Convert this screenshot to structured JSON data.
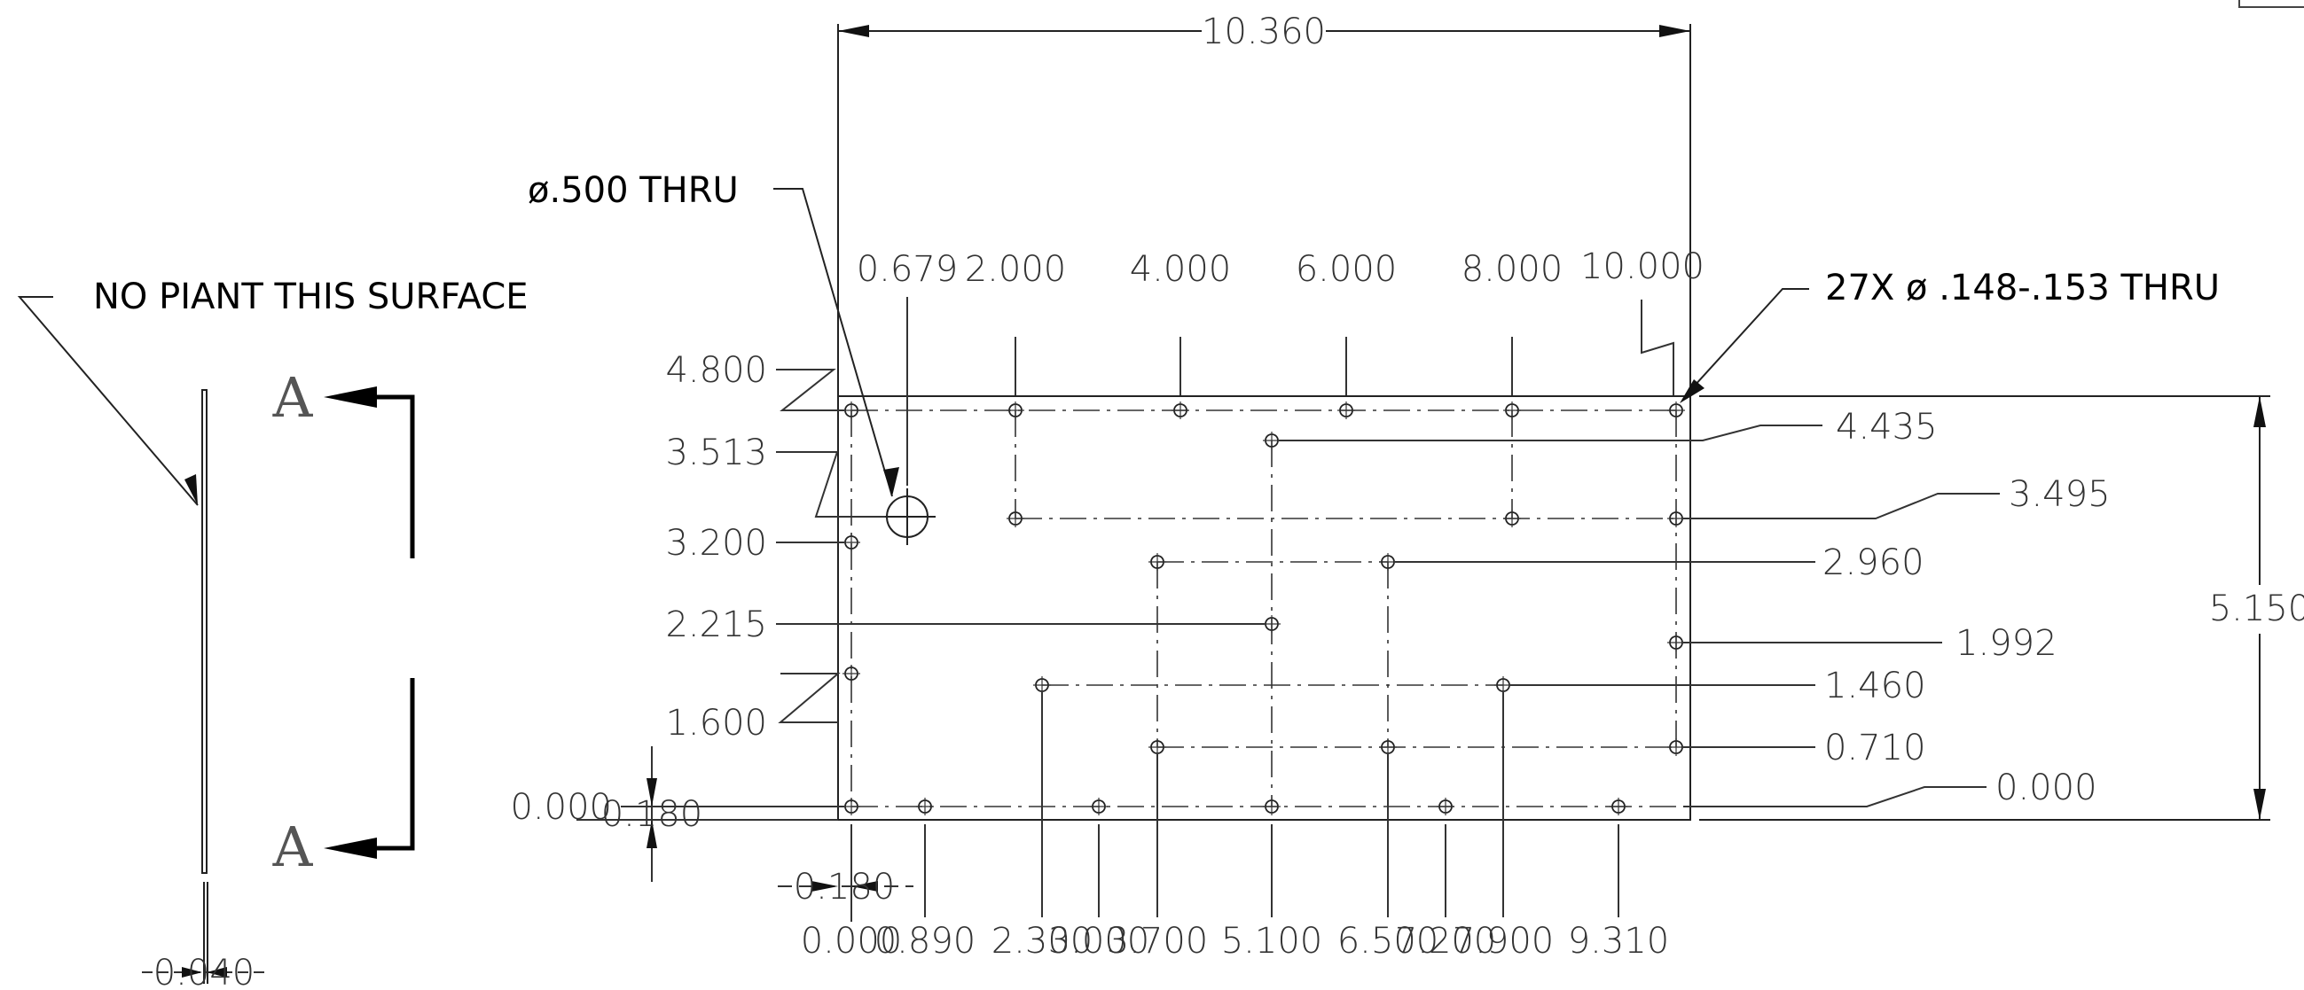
{
  "overall": {
    "width_label": "10.360",
    "height_label": "5.150"
  },
  "notes": {
    "big_hole": "ø.500 THRU",
    "small_holes": "27X ø .148-.153 THRU",
    "no_paint": "NO PIANT THIS SURFACE"
  },
  "section_letter": "A",
  "x_dims_top": [
    "0.679",
    "2.000",
    "4.000",
    "6.000",
    "8.000",
    "10.000"
  ],
  "y_dims_left": [
    "4.800",
    "3.513",
    "3.200",
    "2.215",
    "1.600",
    "0.000"
  ],
  "y_dims_right": [
    "4.435",
    "3.495",
    "2.960",
    "1.992",
    "1.460",
    "0.710",
    "0.000"
  ],
  "x_dims_bottom": [
    "0.000",
    "0.890",
    "2.300",
    "3.000",
    "3.700",
    "5.100",
    "6.500",
    "7.200",
    "7.900",
    "9.310"
  ],
  "offsets": {
    "left_offset": "0.180",
    "bottom_offset": "0.180",
    "thickness": "0.040"
  }
}
